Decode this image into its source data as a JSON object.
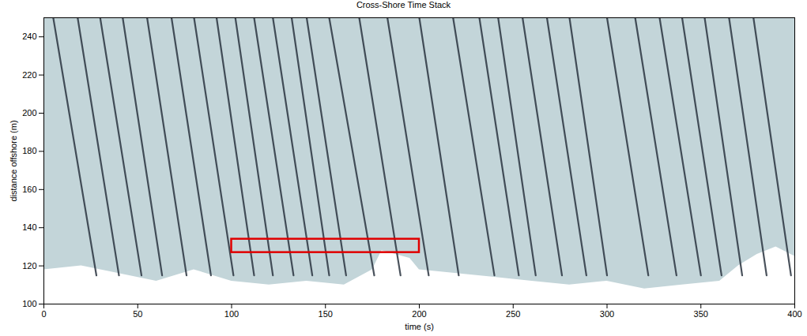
{
  "chart_data": {
    "type": "timestack",
    "title": "Cross-Shore Time Stack",
    "x_label": "time (s)",
    "y_label": "distance offshore (m)",
    "xlim": [
      0,
      400
    ],
    "xticks": [
      0,
      50,
      100,
      150,
      200,
      250,
      300,
      350,
      400
    ],
    "ylim": [
      100,
      250
    ],
    "yticks": [
      100,
      120,
      140,
      160,
      180,
      200,
      220,
      240
    ],
    "color": "#2a3440",
    "streaks": [
      {
        "x": [
          5,
          28
        ],
        "y": [
          250,
          115
        ]
      },
      {
        "x": [
          18,
          40
        ],
        "y": [
          250,
          115
        ]
      },
      {
        "x": [
          30,
          52
        ],
        "y": [
          250,
          115
        ]
      },
      {
        "x": [
          42,
          63
        ],
        "y": [
          250,
          115
        ]
      },
      {
        "x": [
          55,
          76
        ],
        "y": [
          250,
          115
        ]
      },
      {
        "x": [
          68,
          89
        ],
        "y": [
          250,
          115
        ]
      },
      {
        "x": [
          80,
          101
        ],
        "y": [
          250,
          115
        ]
      },
      {
        "x": [
          92,
          112
        ],
        "y": [
          250,
          115
        ]
      },
      {
        "x": [
          102,
          122
        ],
        "y": [
          250,
          115
        ]
      },
      {
        "x": [
          112,
          133
        ],
        "y": [
          250,
          115
        ]
      },
      {
        "x": [
          122,
          143
        ],
        "y": [
          250,
          115
        ]
      },
      {
        "x": [
          132,
          152
        ],
        "y": [
          250,
          115
        ]
      },
      {
        "x": [
          140,
          161
        ],
        "y": [
          250,
          115
        ]
      },
      {
        "x": [
          152,
          176
        ],
        "y": [
          250,
          115
        ]
      },
      {
        "x": [
          168,
          190
        ],
        "y": [
          250,
          115
        ]
      },
      {
        "x": [
          183,
          205
        ],
        "y": [
          250,
          115
        ]
      },
      {
        "x": [
          200,
          221
        ],
        "y": [
          250,
          115
        ]
      },
      {
        "x": [
          218,
          240
        ],
        "y": [
          250,
          115
        ]
      },
      {
        "x": [
          232,
          253
        ],
        "y": [
          250,
          115
        ]
      },
      {
        "x": [
          242,
          262
        ],
        "y": [
          250,
          115
        ]
      },
      {
        "x": [
          255,
          276
        ],
        "y": [
          250,
          115
        ]
      },
      {
        "x": [
          268,
          289
        ],
        "y": [
          250,
          115
        ]
      },
      {
        "x": [
          280,
          300
        ],
        "y": [
          250,
          115
        ]
      },
      {
        "x": [
          300,
          322
        ],
        "y": [
          250,
          115
        ]
      },
      {
        "x": [
          315,
          337
        ],
        "y": [
          250,
          115
        ]
      },
      {
        "x": [
          328,
          350
        ],
        "y": [
          250,
          115
        ]
      },
      {
        "x": [
          340,
          361
        ],
        "y": [
          250,
          115
        ]
      },
      {
        "x": [
          352,
          372
        ],
        "y": [
          250,
          115
        ]
      },
      {
        "x": [
          365,
          385
        ],
        "y": [
          250,
          115
        ]
      },
      {
        "x": [
          378,
          398
        ],
        "y": [
          250,
          115
        ]
      }
    ],
    "swash_edge": {
      "x": [
        0,
        20,
        40,
        60,
        80,
        100,
        120,
        140,
        160,
        175,
        180,
        195,
        200,
        220,
        240,
        260,
        280,
        300,
        320,
        340,
        360,
        370,
        380,
        390,
        400
      ],
      "y": [
        118,
        120,
        116,
        112,
        118,
        112,
        110,
        112,
        110,
        118,
        128,
        124,
        118,
        116,
        114,
        112,
        110,
        112,
        108,
        110,
        112,
        120,
        126,
        130,
        125
      ]
    },
    "highlight": {
      "x": [
        100,
        200
      ],
      "y": [
        127,
        134
      ],
      "color": "#e00000"
    }
  }
}
